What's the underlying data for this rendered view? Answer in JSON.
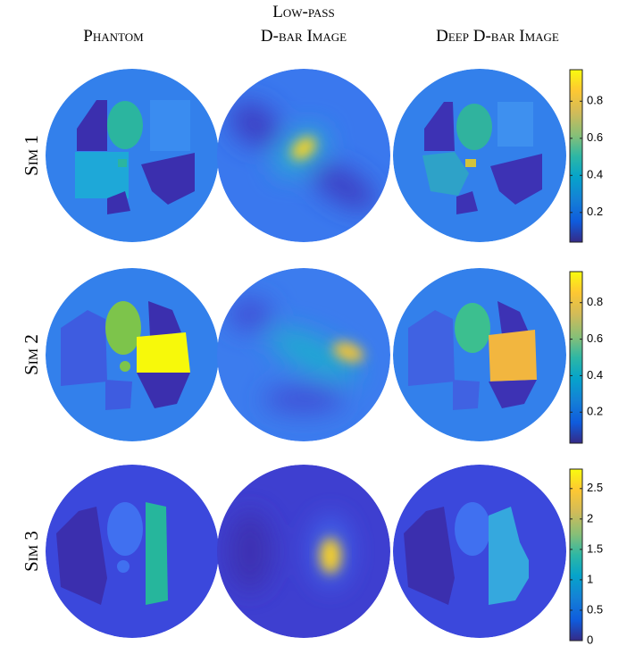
{
  "columns": [
    {
      "lines": [
        "Phantom"
      ]
    },
    {
      "lines": [
        "Low-pass",
        "D-bar Image"
      ]
    },
    {
      "lines": [
        "Deep D-bar Image"
      ]
    }
  ],
  "rows": [
    {
      "label": "Sim 1",
      "colorbar": {
        "lim": [
          0.04,
          0.97
        ],
        "ticks": [
          0.2,
          0.4,
          0.6,
          0.8
        ]
      }
    },
    {
      "label": "Sim 2",
      "colorbar": {
        "lim": [
          0.03,
          0.97
        ],
        "ticks": [
          0.2,
          0.4,
          0.6,
          0.8
        ]
      }
    },
    {
      "label": "Sim 3",
      "colorbar": {
        "lim": [
          0,
          2.82
        ],
        "ticks": [
          0,
          0.5,
          1,
          1.5,
          2,
          2.5
        ]
      }
    }
  ]
}
